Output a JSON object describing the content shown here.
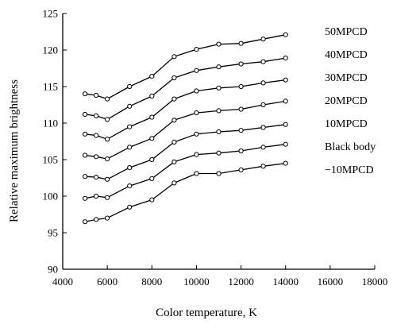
{
  "chart_data": {
    "type": "line",
    "xlabel": "Color temperature, K",
    "ylabel": "Relative maximum brightness",
    "xlim": [
      4000,
      18000
    ],
    "ylim": [
      90,
      125
    ],
    "xticks": [
      "4000",
      "6000",
      "8000",
      "10000",
      "12000",
      "14000",
      "16000",
      "18000"
    ],
    "yticks": [
      "90",
      "95",
      "100",
      "105",
      "110",
      "115",
      "120",
      "125"
    ],
    "grid": false,
    "legend": "labels to the right of line ends",
    "x": [
      5000,
      5500,
      6000,
      7000,
      8000,
      9000,
      10000,
      11000,
      12000,
      13000,
      14000
    ],
    "series": [
      {
        "name": "50MPCD",
        "values": [
          114.0,
          113.8,
          113.3,
          115.0,
          116.4,
          119.1,
          120.1,
          120.8,
          120.9,
          121.5,
          122.1
        ]
      },
      {
        "name": "40MPCD",
        "values": [
          111.2,
          111.0,
          110.5,
          112.3,
          113.7,
          116.2,
          117.2,
          117.7,
          118.1,
          118.4,
          118.9
        ]
      },
      {
        "name": "30MPCD",
        "values": [
          108.5,
          108.3,
          107.8,
          109.5,
          110.8,
          113.3,
          114.4,
          114.8,
          115.0,
          115.5,
          115.9
        ]
      },
      {
        "name": "20MPCD",
        "values": [
          105.6,
          105.4,
          105.1,
          106.7,
          107.9,
          110.4,
          111.4,
          111.7,
          111.9,
          112.5,
          113.0
        ]
      },
      {
        "name": "10MPCD",
        "values": [
          102.7,
          102.6,
          102.3,
          103.9,
          105.0,
          107.4,
          108.5,
          108.8,
          109.0,
          109.4,
          109.8
        ]
      },
      {
        "name": "Black body",
        "values": [
          99.7,
          100.0,
          99.8,
          101.4,
          102.4,
          104.7,
          105.7,
          105.9,
          106.2,
          106.7,
          107.1
        ]
      },
      {
        "name": "−10MPCD",
        "values": [
          96.5,
          96.8,
          97.0,
          98.5,
          99.5,
          101.8,
          103.1,
          103.1,
          103.6,
          104.1,
          104.5
        ]
      }
    ]
  }
}
